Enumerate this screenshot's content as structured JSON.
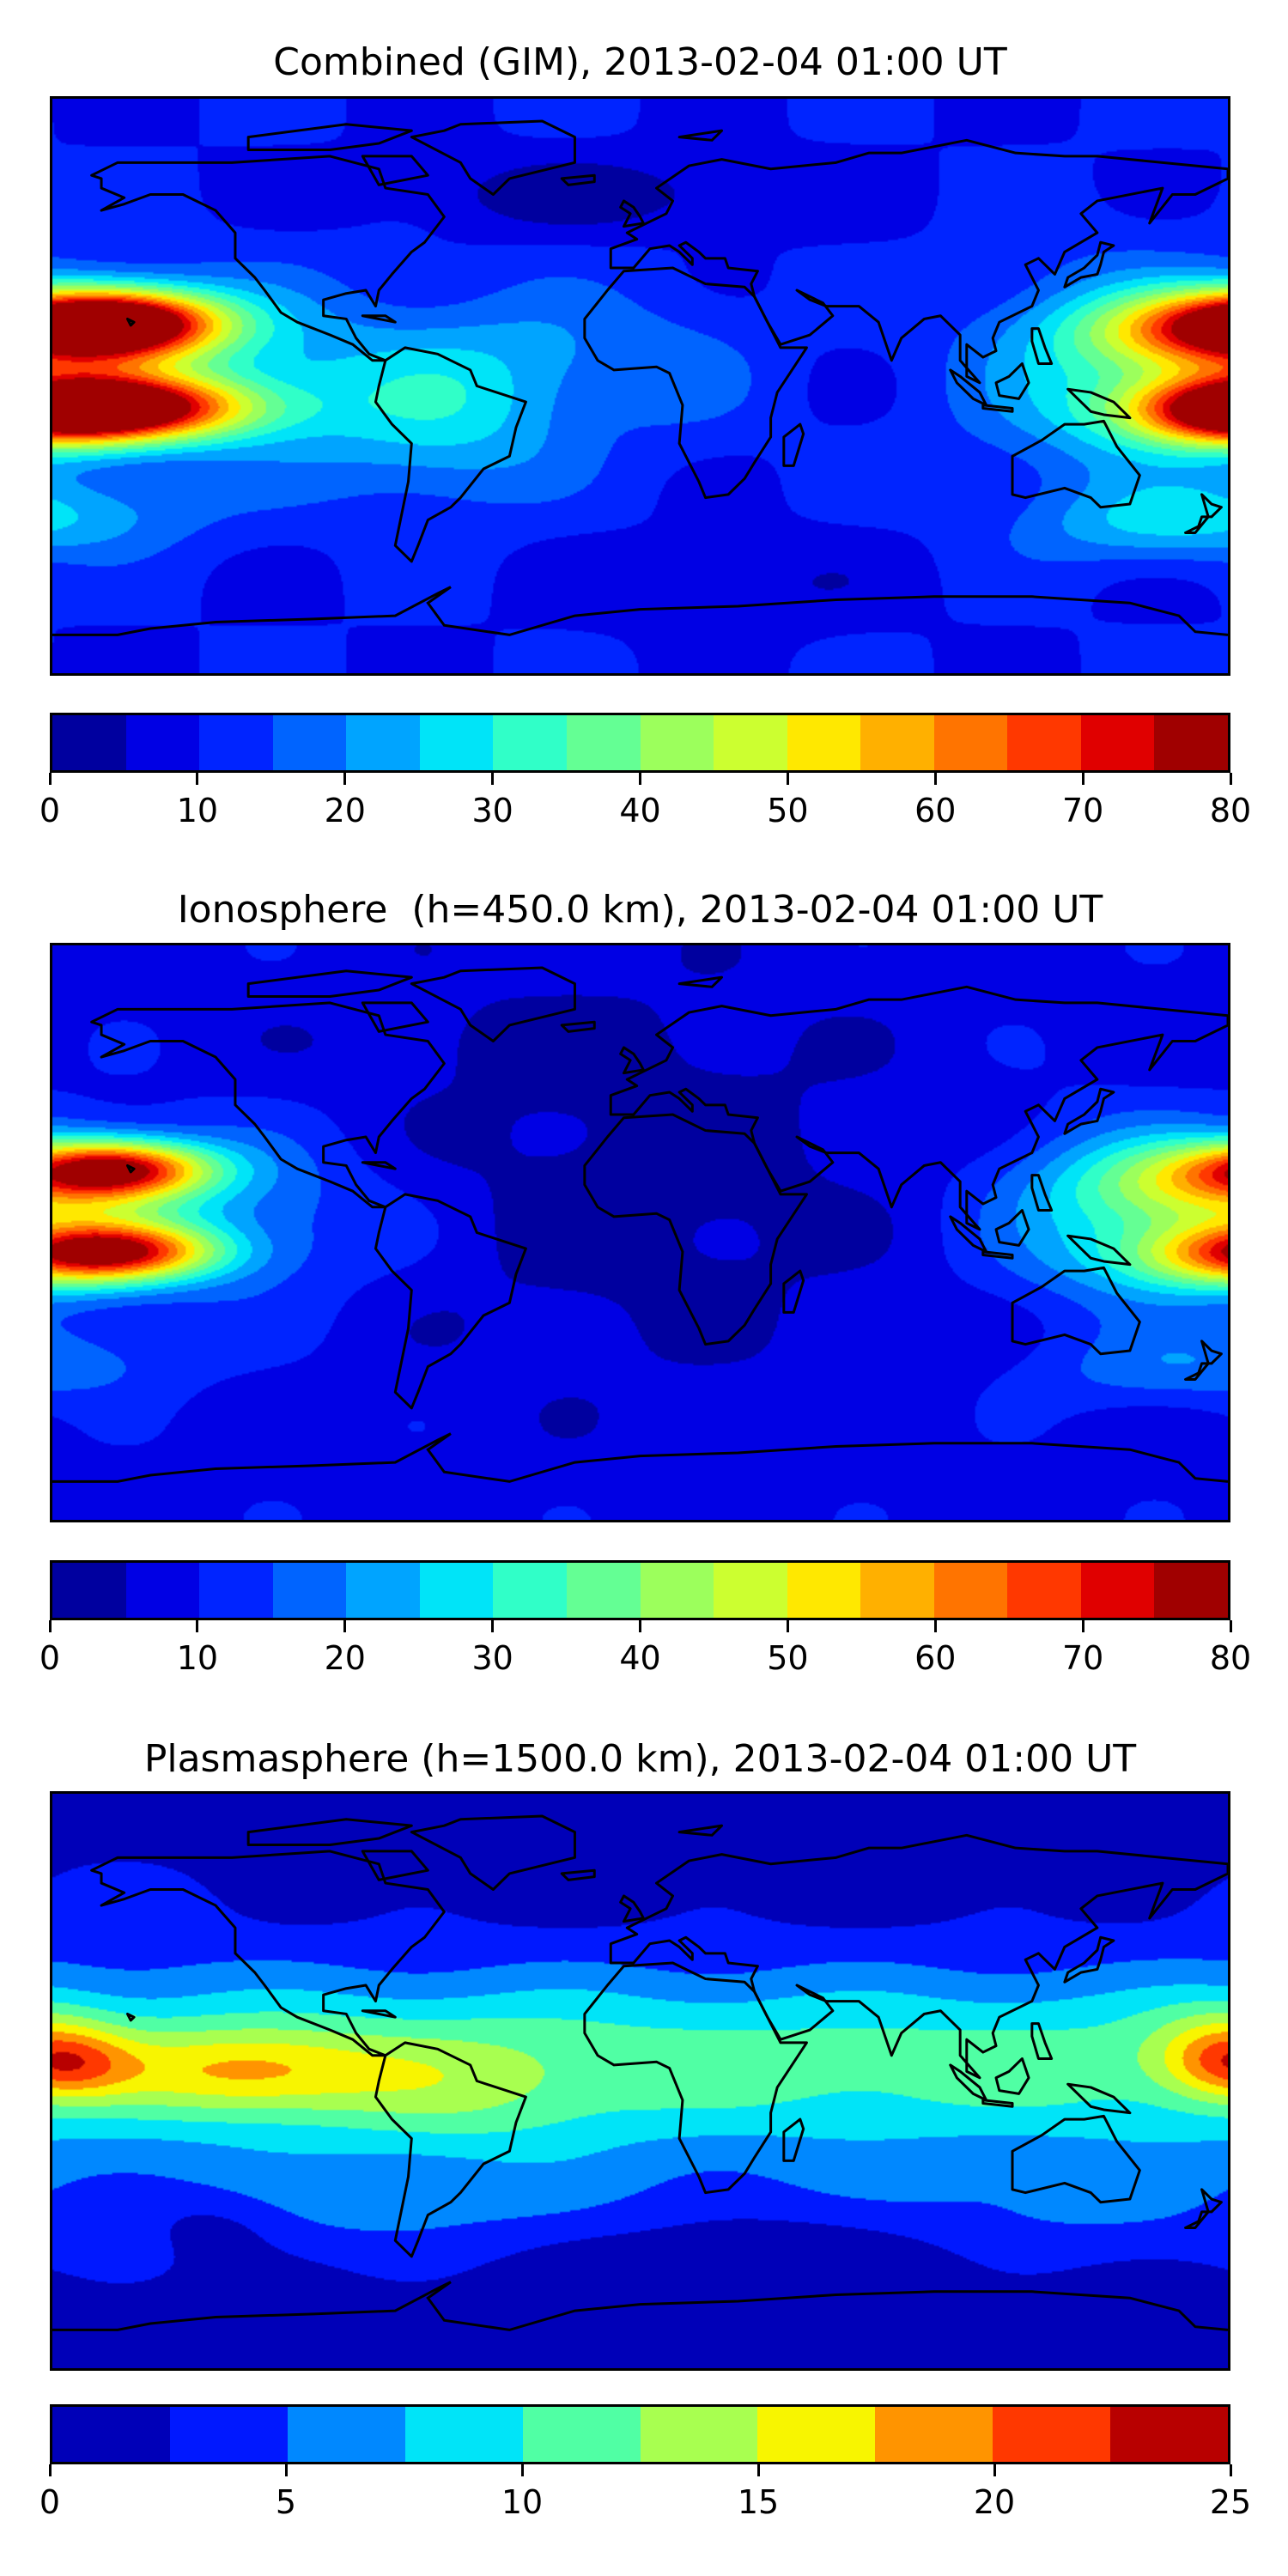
{
  "panels": [
    {
      "title": "Combined (GIM), 2013-02-04 01:00 UT",
      "colorbar": {
        "min": 0,
        "max": 80,
        "step": 5,
        "tick_labels": [
          "0",
          "10",
          "20",
          "30",
          "40",
          "50",
          "60",
          "70",
          "80"
        ],
        "colors": [
          "#00009f",
          "#0000e4",
          "#0024ff",
          "#0064ff",
          "#00a4ff",
          "#00e4f8",
          "#30ffc8",
          "#64ff94",
          "#9cff5c",
          "#ccff30",
          "#ffe800",
          "#ffb000",
          "#ff7400",
          "#ff3800",
          "#e00000",
          "#a00000"
        ]
      }
    },
    {
      "title": "Ionosphere  (h=450.0 km), 2013-02-04 01:00 UT",
      "colorbar": {
        "min": 0,
        "max": 80,
        "step": 5,
        "tick_labels": [
          "0",
          "10",
          "20",
          "30",
          "40",
          "50",
          "60",
          "70",
          "80"
        ],
        "colors": [
          "#00009f",
          "#0000e4",
          "#0024ff",
          "#0064ff",
          "#00a4ff",
          "#00e4f8",
          "#30ffc8",
          "#64ff94",
          "#9cff5c",
          "#ccff30",
          "#ffe800",
          "#ffb000",
          "#ff7400",
          "#ff3800",
          "#e00000",
          "#a00000"
        ]
      }
    },
    {
      "title": "Plasmasphere (h=1500.0 km), 2013-02-04 01:00 UT",
      "colorbar": {
        "min": 0,
        "max": 25,
        "step": 2.5,
        "tick_labels": [
          "0",
          "5",
          "10",
          "15",
          "20",
          "25"
        ],
        "colors": [
          "#0000b8",
          "#0018ff",
          "#0088ff",
          "#00e4f8",
          "#50ffa4",
          "#a8ff50",
          "#f8f500",
          "#ff9400",
          "#ff3800",
          "#b80000"
        ]
      }
    }
  ]
}
